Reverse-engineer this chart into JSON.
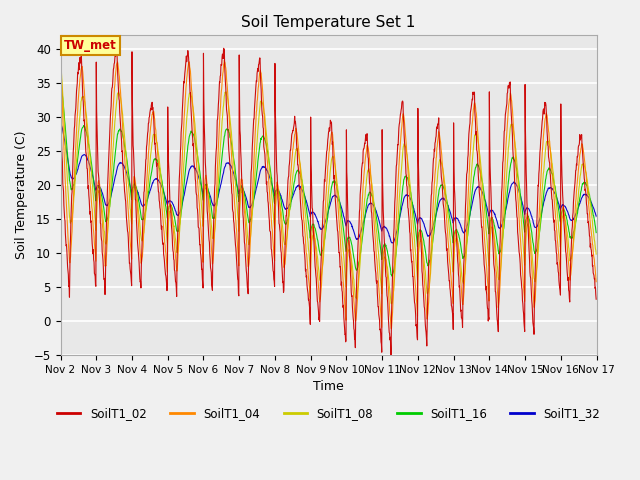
{
  "title": "Soil Temperature Set 1",
  "xlabel": "Time",
  "ylabel": "Soil Temperature (C)",
  "ylim": [
    -5,
    42
  ],
  "yticks": [
    -5,
    0,
    5,
    10,
    15,
    20,
    25,
    30,
    35,
    40
  ],
  "xtick_labels": [
    "Nov 2",
    "Nov 3",
    "Nov 4",
    "Nov 5",
    "Nov 6",
    "Nov 7",
    "Nov 8",
    "Nov 9",
    "Nov 10",
    "Nov 11",
    "Nov 12",
    "Nov 13",
    "Nov 14",
    "Nov 15",
    "Nov 16",
    "Nov 17"
  ],
  "annotation_text": "TW_met",
  "series_colors": {
    "SoilT1_02": "#cc0000",
    "SoilT1_04": "#ff8800",
    "SoilT1_08": "#cccc00",
    "SoilT1_16": "#00cc00",
    "SoilT1_32": "#0000cc"
  },
  "series_order": [
    "SoilT1_32",
    "SoilT1_16",
    "SoilT1_08",
    "SoilT1_04",
    "SoilT1_02"
  ],
  "bg_color": "#e8e8e8",
  "grid_color": "#ffffff",
  "line_width": 0.8,
  "n_days": 15,
  "pts_per_day": 96,
  "surface_peaks": [
    38.5,
    39.5,
    32.0,
    39.5,
    39.5,
    38.0,
    29.5,
    29.0,
    27.5,
    32.0,
    29.0,
    33.5,
    35.0,
    32.0,
    27.0
  ],
  "surface_troughs": [
    4.0,
    4.0,
    4.5,
    4.0,
    4.5,
    3.5,
    4.0,
    -0.5,
    -3.5,
    -4.5,
    -3.5,
    -1.0,
    -1.5,
    -2.0,
    3.0
  ],
  "depths": [
    0.0,
    0.12,
    0.3,
    0.55,
    0.85
  ],
  "depth_names": [
    "SoilT1_02",
    "SoilT1_04",
    "SoilT1_08",
    "SoilT1_16",
    "SoilT1_32"
  ]
}
